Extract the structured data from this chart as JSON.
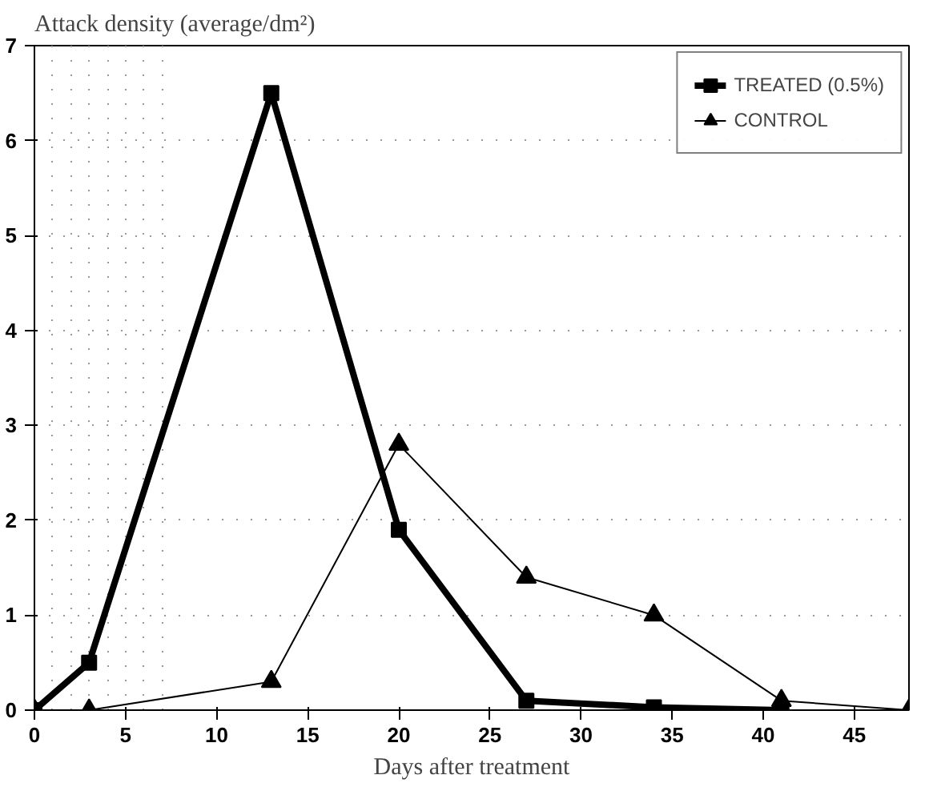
{
  "chart_data": {
    "type": "line",
    "ylabel": "Attack density (average/dm²)",
    "xlabel": "Days after treatment",
    "xlim": [
      0,
      48
    ],
    "ylim": [
      0,
      7
    ],
    "xticks": [
      0,
      5,
      10,
      15,
      20,
      25,
      30,
      35,
      40,
      45
    ],
    "yticks": [
      0,
      1,
      2,
      3,
      4,
      5,
      6,
      7
    ],
    "grid": true,
    "legend": "top right",
    "series": [
      {
        "name": "TREATED (0.5%)",
        "color": "#000000",
        "marker": "square",
        "x": [
          0,
          3,
          13,
          20,
          27,
          34,
          41
        ],
        "values": [
          0,
          0.5,
          6.5,
          1.9,
          0.1,
          0.03,
          0
        ]
      },
      {
        "name": "CONTROL",
        "color": "#000000",
        "marker": "triangle",
        "x": [
          0,
          3,
          13,
          20,
          27,
          34,
          41,
          48
        ],
        "values": [
          0,
          0,
          0.3,
          2.8,
          1.4,
          1.0,
          0.1,
          0
        ]
      }
    ]
  }
}
